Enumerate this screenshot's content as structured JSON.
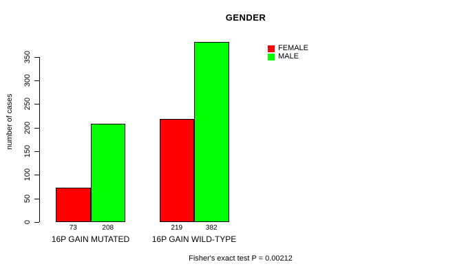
{
  "chart_data": {
    "type": "bar",
    "title": "GENDER",
    "ylabel": "number of cases",
    "xlabel": "",
    "categories": [
      "16P GAIN MUTATED",
      "16P GAIN WILD-TYPE"
    ],
    "series": [
      {
        "name": "FEMALE",
        "color": "#ff0000",
        "values": [
          73,
          219
        ]
      },
      {
        "name": "MALE",
        "color": "#00ff00",
        "values": [
          208,
          382
        ]
      }
    ],
    "show_bar_values": true,
    "ylim": [
      0,
      350
    ],
    "yticks": [
      0,
      50,
      100,
      150,
      200,
      250,
      300,
      350
    ],
    "grid": false,
    "bar_border_color": "#000000",
    "legend": {
      "position": "top-right",
      "entries": [
        "FEMALE",
        "MALE"
      ]
    },
    "annotation": "Fisher's exact test P = 0.00212"
  }
}
